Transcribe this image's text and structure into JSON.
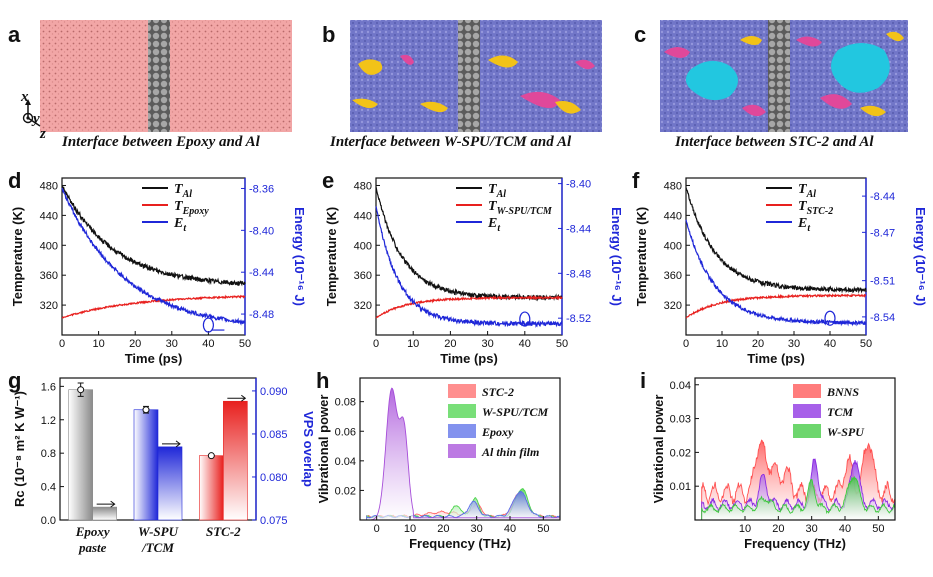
{
  "panels": {
    "a": {
      "label": "a",
      "caption": "Interface between Epoxy and Al"
    },
    "b": {
      "label": "b",
      "caption": "Interface between W-SPU/TCM and Al"
    },
    "c": {
      "label": "c",
      "caption": "Interface between STC-2 and Al"
    },
    "axes_indicator": {
      "x": "x",
      "y": "y",
      "z": "z"
    }
  },
  "colors": {
    "epoxy_pink": "#f2a6a6",
    "substrate_gray": "#8a8a8a",
    "purple_blue": "#6c6fc4",
    "yellow": "#f2c318",
    "magenta": "#e0489a",
    "cyan": "#22c7e0",
    "black": "#111111",
    "red": "#e8201e",
    "blue": "#1f27d8"
  },
  "chart_data": [
    {
      "id": "d",
      "label": "d",
      "type": "line",
      "xlabel": "Time (ps)",
      "ylabel": "Temperature (K)",
      "y2label": "Energy (10⁻¹⁶ J)",
      "xlim": [
        0,
        50
      ],
      "ylim": [
        280,
        490
      ],
      "y2lim": [
        -8.5,
        -8.35
      ],
      "xticks": [
        0,
        10,
        20,
        30,
        40,
        50
      ],
      "yticks": [
        320,
        360,
        400,
        440,
        480
      ],
      "y2ticks": [
        -8.36,
        -8.4,
        -8.44,
        -8.48
      ],
      "legend": [
        "T_Al",
        "T_Epoxy",
        "E_t"
      ],
      "series": [
        {
          "name": "T_Al",
          "axis": "left",
          "color": "#111111",
          "start": 480,
          "end": 345,
          "tau": 14,
          "noise": 3
        },
        {
          "name": "T_Epoxy",
          "axis": "left",
          "color": "#e8201e",
          "start": 303,
          "end": 334,
          "tau": 20,
          "noise": 1
        },
        {
          "name": "E_t",
          "axis": "right",
          "color": "#1f27d8",
          "start": -8.36,
          "end": -8.495,
          "tau": 17,
          "noise": 0.002
        }
      ]
    },
    {
      "id": "e",
      "label": "e",
      "type": "line",
      "xlabel": "Time (ps)",
      "ylabel": "Temperature (K)",
      "y2label": "Energy (10⁻¹⁶ J)",
      "xlim": [
        0,
        50
      ],
      "ylim": [
        280,
        490
      ],
      "y2lim": [
        -8.535,
        -8.395
      ],
      "xticks": [
        0,
        10,
        20,
        30,
        40,
        50
      ],
      "yticks": [
        320,
        360,
        400,
        440,
        480
      ],
      "y2ticks": [
        -8.4,
        -8.44,
        -8.48,
        -8.52
      ],
      "legend": [
        "T_Al",
        "T_W-SPU/TCM",
        "E_t"
      ],
      "series": [
        {
          "name": "T_Al",
          "axis": "left",
          "color": "#111111",
          "start": 478,
          "end": 330,
          "tau": 7,
          "noise": 3
        },
        {
          "name": "T_W-SPU/TCM",
          "axis": "left",
          "color": "#e8201e",
          "start": 303,
          "end": 330,
          "tau": 8,
          "noise": 1.2
        },
        {
          "name": "E_t",
          "axis": "right",
          "color": "#1f27d8",
          "start": -8.42,
          "end": -8.525,
          "tau": 6,
          "noise": 0.002
        }
      ]
    },
    {
      "id": "f",
      "label": "f",
      "type": "line",
      "xlabel": "Time (ps)",
      "ylabel": "Temperature (K)",
      "y2label": "Energy (10⁻¹⁶ J)",
      "xlim": [
        0,
        50
      ],
      "ylim": [
        280,
        490
      ],
      "y2lim": [
        -8.555,
        -8.425
      ],
      "xticks": [
        0,
        10,
        20,
        30,
        40,
        50
      ],
      "yticks": [
        320,
        360,
        400,
        440,
        480
      ],
      "y2ticks": [
        -8.44,
        -8.47,
        -8.51,
        -8.54
      ],
      "legend": [
        "T_Al",
        "T_STC-2",
        "E_t"
      ],
      "series": [
        {
          "name": "T_Al",
          "axis": "left",
          "color": "#111111",
          "start": 478,
          "end": 340,
          "tau": 8,
          "noise": 3
        },
        {
          "name": "T_STC-2",
          "axis": "left",
          "color": "#e8201e",
          "start": 303,
          "end": 333,
          "tau": 9,
          "noise": 1.2
        },
        {
          "name": "E_t",
          "axis": "right",
          "color": "#1f27d8",
          "start": -8.46,
          "end": -8.545,
          "tau": 8,
          "noise": 0.0015
        }
      ]
    },
    {
      "id": "g",
      "label": "g",
      "type": "bar",
      "ylabel": "Rc (10⁻⁸ m² K W⁻¹)",
      "y2label": "VPS overlap",
      "ylim": [
        0,
        1.7
      ],
      "y2lim": [
        0.075,
        0.0915
      ],
      "yticks": [
        0.0,
        0.4,
        0.8,
        1.2,
        1.6
      ],
      "y2ticks": [
        0.075,
        0.08,
        0.085,
        0.09
      ],
      "categories": [
        "Epoxy paste",
        "W-SPU /TCM",
        "STC-2"
      ],
      "category_lines": [
        [
          "Epoxy",
          "paste"
        ],
        [
          "W-SPU",
          "/TCM"
        ],
        [
          "STC-2"
        ]
      ],
      "rc_values": [
        1.56,
        1.32,
        0.77
      ],
      "rc_errors": [
        0.08,
        0.04,
        0.01
      ],
      "vps_values": [
        0.0765,
        0.0835,
        0.0888
      ],
      "bar_colors": [
        "#8a8a8a",
        "#1f27d8",
        "#e8201e"
      ]
    },
    {
      "id": "h",
      "label": "h",
      "type": "area",
      "xlabel": "Frequency (THz)",
      "ylabel": "Vibrational power",
      "xlim": [
        -5,
        55
      ],
      "ylim": [
        0,
        0.096
      ],
      "xticks": [
        0,
        10,
        20,
        30,
        40,
        50
      ],
      "yticks": [
        0.02,
        0.04,
        0.06,
        0.08
      ],
      "legend": [
        "STC-2",
        "W-SPU/TCM",
        "Epoxy",
        "Al thin film"
      ],
      "series": [
        {
          "name": "STC-2",
          "color": "#ff6a6a",
          "peaks": [
            [
              20,
              5,
              0.003
            ],
            [
              30,
              1.5,
              0.008
            ],
            [
              43,
              2,
              0.016
            ]
          ],
          "base": 0.002
        },
        {
          "name": "W-SPU/TCM",
          "color": "#4cd44c",
          "peaks": [
            [
              24,
              1.2,
              0.008
            ],
            [
              29.5,
              1.2,
              0.012
            ],
            [
              43.5,
              1.8,
              0.019
            ]
          ],
          "base": 0.002
        },
        {
          "name": "Epoxy",
          "color": "#5a6ee8",
          "peaks": [
            [
              29,
              1.5,
              0.01
            ],
            [
              43,
              2,
              0.017
            ]
          ],
          "base": 0.002
        },
        {
          "name": "Al thin film",
          "color": "#a64dd9",
          "peaks": [
            [
              4.5,
              1.7,
              0.088
            ],
            [
              8.2,
              1.3,
              0.059
            ]
          ],
          "base": 0.0,
          "cutoff": 11
        }
      ]
    },
    {
      "id": "i",
      "label": "i",
      "type": "area",
      "xlabel": "Frequency (THz)",
      "ylabel": "Vibrational power",
      "xlim": [
        -5,
        55
      ],
      "ylim": [
        0,
        0.042
      ],
      "xticks": [
        10,
        20,
        30,
        40,
        50
      ],
      "yticks": [
        0.01,
        0.02,
        0.03,
        0.04
      ],
      "legend": [
        "BNNS",
        "TCM",
        "W-SPU"
      ],
      "series": [
        {
          "name": "BNNS",
          "color": "#ff5050",
          "peaks": [
            [
              14.5,
              1.3,
              0.016
            ],
            [
              18,
              1.2,
              0.008
            ],
            [
              22,
              1.5,
              0.006
            ],
            [
              41,
              1.4,
              0.009
            ],
            [
              47,
              1.3,
              0.016
            ]
          ],
          "base": 0.007
        },
        {
          "name": "TCM",
          "color": "#8a2be2",
          "peaks": [
            [
              15.5,
              1.2,
              0.008
            ],
            [
              31,
              1.0,
              0.014
            ],
            [
              43,
              1.2,
              0.014
            ]
          ],
          "base": 0.004
        },
        {
          "name": "W-SPU",
          "color": "#3cc83c",
          "peaks": [
            [
              16,
              1.5,
              0.003
            ],
            [
              30,
              1.0,
              0.008
            ],
            [
              42.5,
              1.5,
              0.01
            ]
          ],
          "base": 0.003
        }
      ]
    }
  ]
}
